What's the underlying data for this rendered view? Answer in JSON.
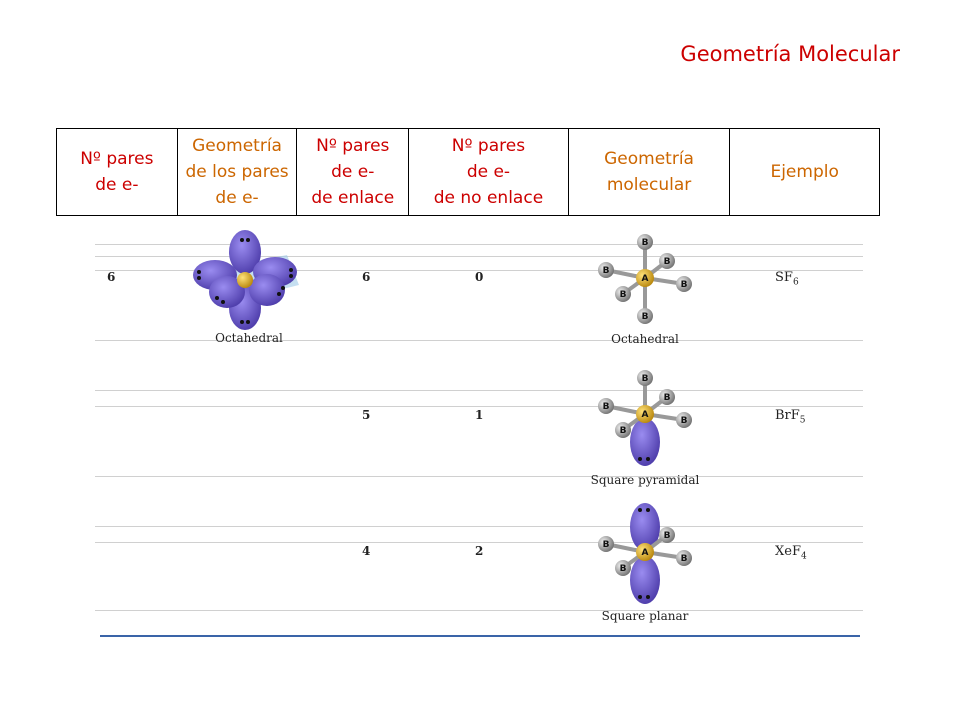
{
  "title": "Geometría Molecular",
  "header": {
    "col1": "Nº pares\nde e-",
    "col2": "Geometría\nde los pares\nde e-",
    "col3": "Nº pares\nde e-\nde enlace",
    "col4": "Nº pares\nde e-\nde no enlace",
    "col5": "Geometría\nmolecular",
    "col6": "Ejemplo"
  },
  "rows": [
    {
      "pairs": "6",
      "electron_geometry": "Octahedral",
      "bonding": "6",
      "nonbonding": "0",
      "molecular_geometry": "Octahedral",
      "example_base": "SF",
      "example_sub": "6"
    },
    {
      "pairs": "",
      "electron_geometry": "",
      "bonding": "5",
      "nonbonding": "1",
      "molecular_geometry": "Square pyramidal",
      "example_base": "BrF",
      "example_sub": "5"
    },
    {
      "pairs": "",
      "electron_geometry": "",
      "bonding": "4",
      "nonbonding": "2",
      "molecular_geometry": "Square planar",
      "example_base": "XeF",
      "example_sub": "4"
    }
  ],
  "atom_labels": {
    "central": "A",
    "ligand": "B"
  },
  "colors": {
    "title": "#cc0000",
    "header_orange": "#cc6600",
    "header_red": "#cc0000",
    "lobe": "#6a5acd",
    "central_atom": "#d4a017",
    "ligand_atom": "#9a9a9a",
    "bottom_rule": "#3a64a8"
  }
}
